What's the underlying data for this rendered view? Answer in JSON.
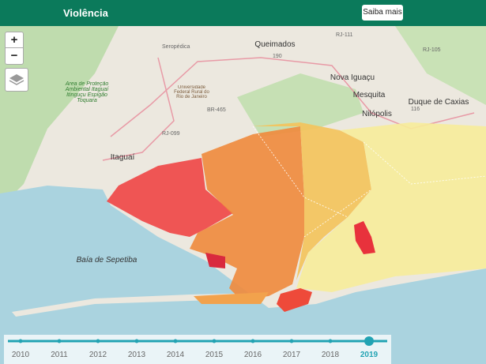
{
  "header": {
    "title": "Violência",
    "button": "Saiba mais"
  },
  "zoom": {
    "in": "+",
    "out": "−"
  },
  "places": [
    "Queimados",
    "Nova Iguaçu",
    "Mesquita",
    "Duque de Caxias",
    "Nilópolis",
    "Seropédica",
    "Itaguaí",
    "Baía de Sepetiba",
    "Área de Proteção Ambiental Itaguaí Itinguçu Espigão Toquara",
    "Universidade Federal Rural do Rio de Janeiro"
  ],
  "roads": [
    "RJ-111",
    "RJ-105",
    "BR-465",
    "RJ-099",
    "190",
    "116"
  ],
  "timeline": {
    "years": [
      {
        "label": "2010",
        "active": false
      },
      {
        "label": "2011",
        "active": false
      },
      {
        "label": "2012",
        "active": false
      },
      {
        "label": "2013",
        "active": false
      },
      {
        "label": "2014",
        "active": false
      },
      {
        "label": "2015",
        "active": false
      },
      {
        "label": "2016",
        "active": false
      },
      {
        "label": "2017",
        "active": false
      },
      {
        "label": "2018",
        "active": false
      },
      {
        "label": "2019",
        "active": true
      }
    ]
  }
}
